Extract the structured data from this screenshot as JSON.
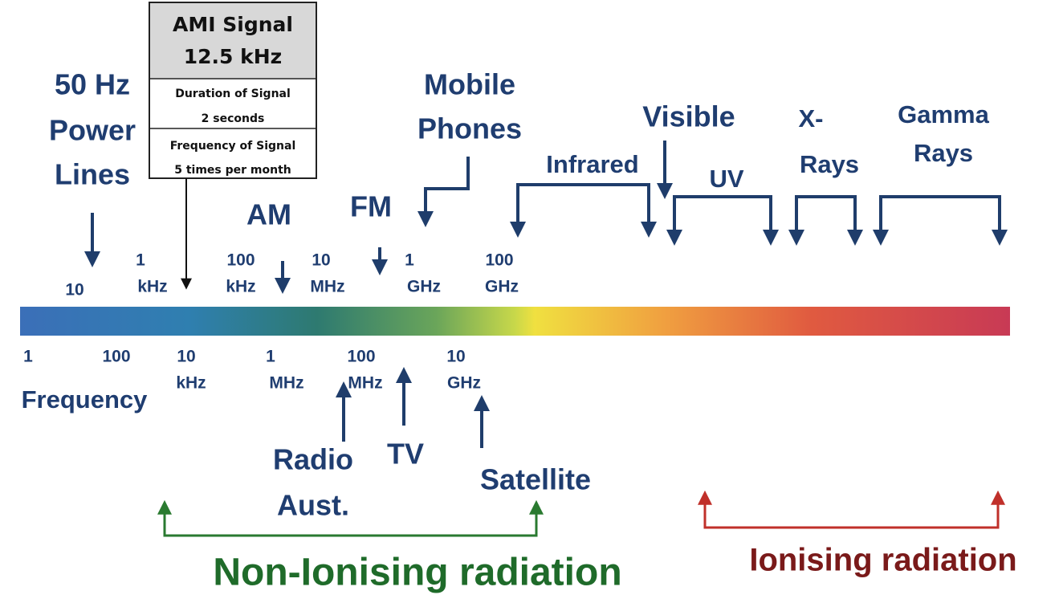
{
  "callout": {
    "title": "AMI Signal",
    "frequency": "12.5 kHz",
    "rows": [
      {
        "label": "Duration of Signal",
        "value": "2 seconds"
      },
      {
        "label": "Frequency of Signal",
        "value": "5 times per month"
      }
    ]
  },
  "bands": {
    "power_lines": [
      "50 Hz",
      "Power",
      "Lines"
    ],
    "am": [
      "AM"
    ],
    "fm": [
      "FM"
    ],
    "mobile": [
      "Mobile",
      "Phones"
    ],
    "infrared": [
      "Infrared"
    ],
    "visible": [
      "Visible"
    ],
    "uv": [
      "UV"
    ],
    "x_rays": [
      "X-",
      "Rays"
    ],
    "gamma": [
      "Gamma",
      "Rays"
    ]
  },
  "upper_scale": [
    [
      "10"
    ],
    [
      "1",
      "kHz"
    ],
    [
      "100",
      "kHz"
    ],
    [
      "10",
      "MHz"
    ],
    [
      "1",
      "GHz"
    ],
    [
      "100",
      "GHz"
    ]
  ],
  "lower_scale": [
    [
      "1"
    ],
    [
      "100"
    ],
    [
      "10",
      "kHz"
    ],
    [
      "1",
      "MHz"
    ],
    [
      "100",
      "MHz"
    ],
    [
      "10",
      "GHz"
    ]
  ],
  "axis_label": "Frequency",
  "services": {
    "radio": [
      "Radio",
      "Aust."
    ],
    "tv": [
      "TV"
    ],
    "satellite": [
      "Satellite"
    ]
  },
  "regions": {
    "non_ionising": "Non-Ionising radiation",
    "ionising": "Ionising radiation"
  }
}
